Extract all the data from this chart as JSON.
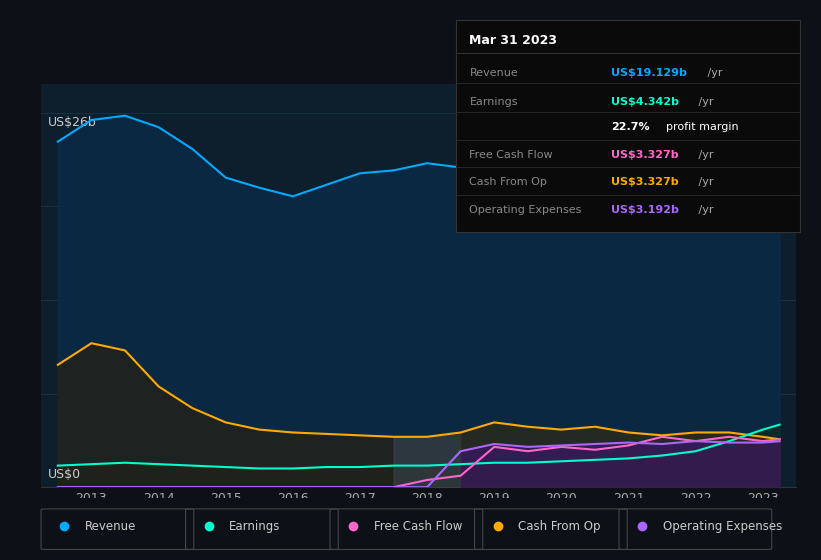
{
  "bg_color": "#0d1117",
  "plot_bg_color": "#0d1f2d",
  "title": "Mar 31 2023",
  "y_label_top": "US$26b",
  "y_label_bottom": "US$0",
  "years": [
    2012.5,
    2013.0,
    2013.5,
    2014.0,
    2014.5,
    2015.0,
    2015.5,
    2016.0,
    2016.5,
    2017.0,
    2017.5,
    2018.0,
    2018.5,
    2019.0,
    2019.5,
    2020.0,
    2020.5,
    2021.0,
    2021.5,
    2022.0,
    2022.5,
    2023.0,
    2023.25
  ],
  "revenue": [
    24.0,
    25.5,
    25.8,
    25.0,
    23.5,
    21.5,
    20.8,
    20.2,
    21.0,
    21.8,
    22.0,
    22.5,
    22.2,
    22.0,
    21.8,
    21.5,
    21.8,
    22.5,
    23.0,
    23.5,
    22.0,
    19.5,
    19.129
  ],
  "earnings": [
    1.5,
    1.6,
    1.7,
    1.6,
    1.5,
    1.4,
    1.3,
    1.3,
    1.4,
    1.4,
    1.5,
    1.5,
    1.6,
    1.7,
    1.7,
    1.8,
    1.9,
    2.0,
    2.2,
    2.5,
    3.2,
    4.0,
    4.342
  ],
  "free_cash_flow": [
    0.0,
    0.0,
    0.0,
    0.0,
    0.0,
    0.0,
    0.0,
    0.0,
    0.0,
    0.0,
    0.0,
    0.5,
    0.8,
    2.8,
    2.5,
    2.8,
    2.6,
    2.9,
    3.5,
    3.2,
    3.5,
    3.2,
    3.327
  ],
  "cash_from_op": [
    8.5,
    10.0,
    9.5,
    7.0,
    5.5,
    4.5,
    4.0,
    3.8,
    3.7,
    3.6,
    3.5,
    3.5,
    3.8,
    4.5,
    4.2,
    4.0,
    4.2,
    3.8,
    3.6,
    3.8,
    3.8,
    3.5,
    3.327
  ],
  "operating_expenses": [
    0.0,
    0.0,
    0.0,
    0.0,
    0.0,
    0.0,
    0.0,
    0.0,
    0.0,
    0.0,
    0.0,
    0.0,
    2.5,
    3.0,
    2.8,
    2.9,
    3.0,
    3.1,
    3.0,
    3.2,
    3.1,
    3.1,
    3.192
  ],
  "revenue_color": "#00aaff",
  "earnings_color": "#00ffcc",
  "free_cash_flow_color": "#ff66cc",
  "cash_from_op_color": "#ffaa00",
  "operating_expenses_color": "#aa66ff",
  "highlight_start": 2017.5,
  "highlight_end": 2018.5,
  "xmin": 2012.25,
  "xmax": 2023.5,
  "ymin": 0,
  "ymax": 28,
  "xticks": [
    2013,
    2014,
    2015,
    2016,
    2017,
    2018,
    2019,
    2020,
    2021,
    2022,
    2023
  ],
  "legend_items": [
    "Revenue",
    "Earnings",
    "Free Cash Flow",
    "Cash From Op",
    "Operating Expenses"
  ],
  "legend_colors": [
    "#00aaff",
    "#00ffcc",
    "#ff66cc",
    "#ffaa00",
    "#aa66ff"
  ],
  "tooltip_bg": "#0a0a0a",
  "tooltip_border": "#333333",
  "info_rows": [
    {
      "label": "Revenue",
      "value": "US$19.129b",
      "value_color": "#00aaff"
    },
    {
      "label": "Earnings",
      "value": "US$4.342b",
      "value_color": "#00ffcc"
    },
    {
      "label": "",
      "value": "22.7% profit margin",
      "value_color": "#ffffff",
      "bold_part": "22.7%"
    },
    {
      "label": "Free Cash Flow",
      "value": "US$3.327b",
      "value_color": "#ff66cc"
    },
    {
      "label": "Cash From Op",
      "value": "US$3.327b",
      "value_color": "#ffaa00"
    },
    {
      "label": "Operating Expenses",
      "value": "US$3.192b",
      "value_color": "#aa66ff"
    }
  ]
}
